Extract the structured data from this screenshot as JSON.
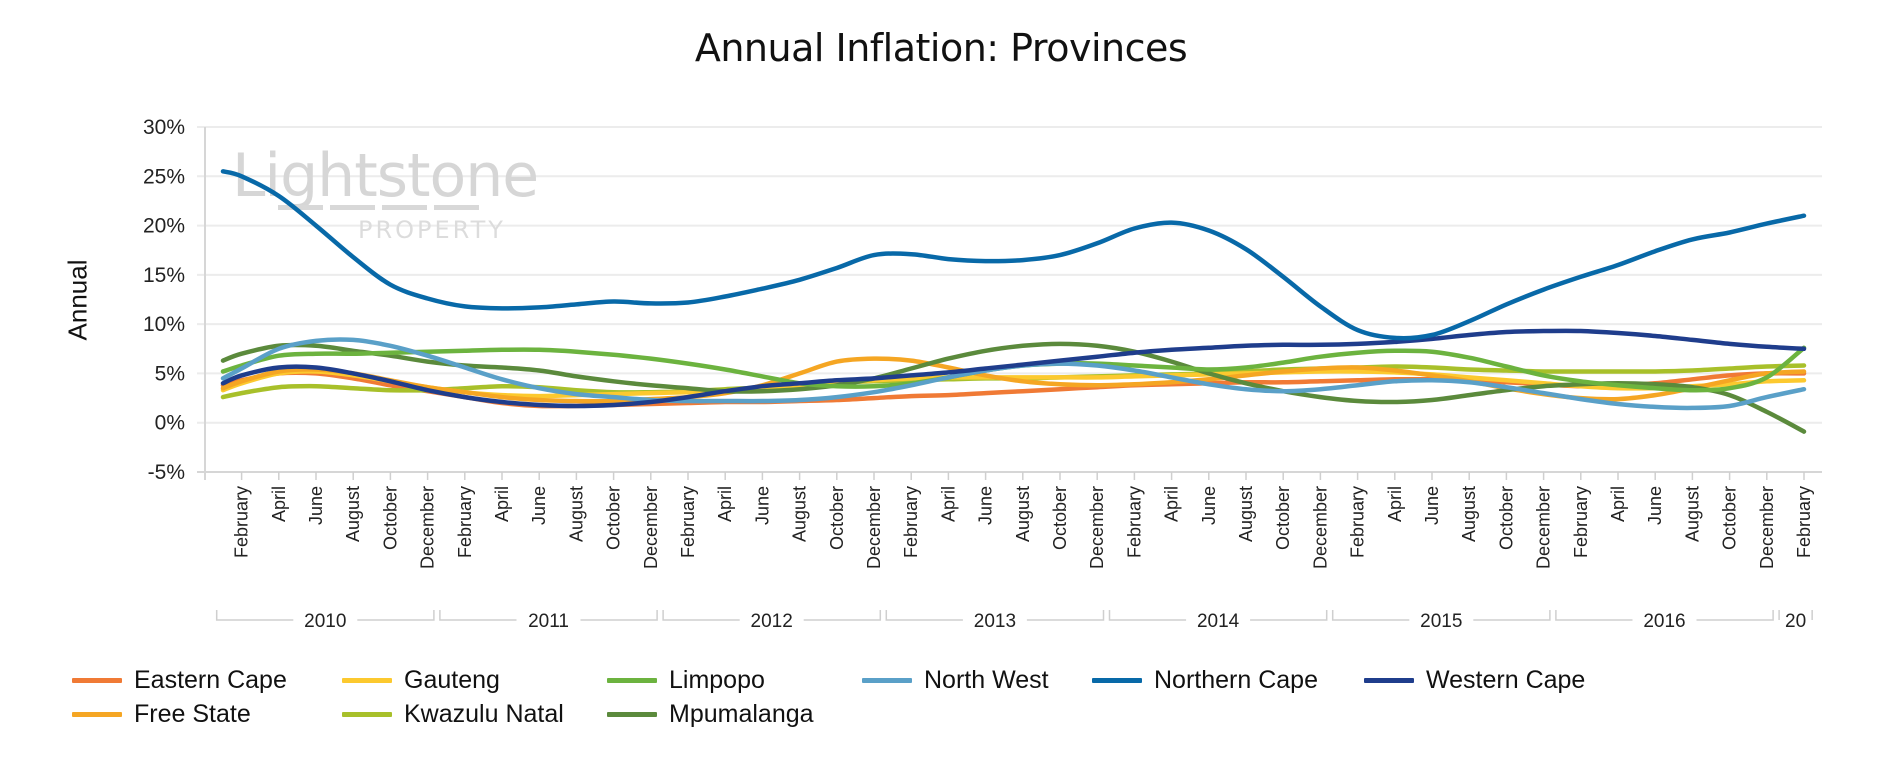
{
  "chart_data": {
    "type": "line",
    "title": "Annual Inflation: Provinces",
    "xlabel": "",
    "ylabel": "Annual",
    "ylim": [
      -5,
      30
    ],
    "yticks": [
      -5,
      0,
      5,
      10,
      15,
      20,
      25,
      30
    ],
    "ytick_labels": [
      "-5%",
      "0%",
      "5%",
      "10%",
      "15%",
      "20%",
      "25%",
      "30%"
    ],
    "grid": true,
    "legend_position": "bottom",
    "watermark": {
      "line1": "Lightstone",
      "line2": "PROPERTY"
    },
    "x_start": "2010-01",
    "x_end": "2017-02",
    "x_tick_labels": [
      "February",
      "April",
      "June",
      "August",
      "October",
      "December",
      "February",
      "April",
      "June",
      "August",
      "October",
      "December",
      "February",
      "April",
      "June",
      "August",
      "October",
      "December",
      "February",
      "April",
      "June",
      "August",
      "October",
      "December",
      "February",
      "April",
      "June",
      "August",
      "October",
      "December",
      "February",
      "April",
      "June",
      "August",
      "October",
      "December",
      "February",
      "April",
      "June",
      "August",
      "October",
      "December",
      "February"
    ],
    "x_groups": [
      {
        "label": "2010"
      },
      {
        "label": "2011"
      },
      {
        "label": "2012"
      },
      {
        "label": "2013"
      },
      {
        "label": "2014"
      },
      {
        "label": "2015"
      },
      {
        "label": "2016"
      },
      {
        "label": "20"
      }
    ],
    "x_sample_note": "Values sampled at Jan 2010 then every second month (Feb, Apr, Jun, Aug, Oct, Dec) through Feb 2017",
    "x": [
      "2010-01",
      "2010-02",
      "2010-04",
      "2010-06",
      "2010-08",
      "2010-10",
      "2010-12",
      "2011-02",
      "2011-04",
      "2011-06",
      "2011-08",
      "2011-10",
      "2011-12",
      "2012-02",
      "2012-04",
      "2012-06",
      "2012-08",
      "2012-10",
      "2012-12",
      "2013-02",
      "2013-04",
      "2013-06",
      "2013-08",
      "2013-10",
      "2013-12",
      "2014-02",
      "2014-04",
      "2014-06",
      "2014-08",
      "2014-10",
      "2014-12",
      "2015-02",
      "2015-04",
      "2015-06",
      "2015-08",
      "2015-10",
      "2015-12",
      "2016-02",
      "2016-04",
      "2016-06",
      "2016-08",
      "2016-10",
      "2016-12",
      "2017-02"
    ],
    "series": [
      {
        "name": "Eastern Cape",
        "color": "#f07a35",
        "values": [
          3.8,
          4.3,
          5.0,
          5.0,
          4.5,
          3.8,
          3.2,
          2.6,
          2.0,
          1.7,
          1.7,
          1.8,
          1.9,
          2.0,
          2.1,
          2.1,
          2.2,
          2.3,
          2.5,
          2.7,
          2.8,
          3.0,
          3.2,
          3.4,
          3.6,
          3.8,
          3.9,
          4.0,
          4.1,
          4.1,
          4.2,
          4.3,
          4.4,
          4.4,
          4.3,
          4.1,
          3.9,
          3.7,
          3.8,
          4.0,
          4.4,
          4.8,
          5.0,
          5.0
        ]
      },
      {
        "name": "Free State",
        "color": "#f5a623",
        "values": [
          3.5,
          4.2,
          5.2,
          5.4,
          5.0,
          4.3,
          3.6,
          3.1,
          2.6,
          2.3,
          2.2,
          2.2,
          2.4,
          2.6,
          3.0,
          3.8,
          5.0,
          6.2,
          6.5,
          6.3,
          5.6,
          4.8,
          4.2,
          3.9,
          3.8,
          3.9,
          4.1,
          4.4,
          4.8,
          5.2,
          5.5,
          5.6,
          5.3,
          4.8,
          4.2,
          3.5,
          2.9,
          2.5,
          2.4,
          2.8,
          3.5,
          4.3,
          5.0,
          5.2
        ]
      },
      {
        "name": "Gauteng",
        "color": "#fcc92f",
        "values": [
          3.3,
          4.0,
          5.0,
          5.2,
          4.8,
          4.2,
          3.6,
          3.1,
          2.8,
          2.7,
          2.8,
          2.9,
          3.0,
          3.1,
          3.2,
          3.4,
          3.7,
          4.0,
          4.3,
          4.5,
          4.6,
          4.6,
          4.6,
          4.6,
          4.6,
          4.7,
          4.8,
          4.9,
          5.0,
          5.1,
          5.2,
          5.2,
          5.1,
          4.9,
          4.6,
          4.3,
          4.0,
          3.7,
          3.5,
          3.5,
          3.7,
          3.9,
          4.2,
          4.3
        ]
      },
      {
        "name": "Kwazulu Natal",
        "color": "#a8c02a",
        "values": [
          2.6,
          3.0,
          3.6,
          3.7,
          3.5,
          3.3,
          3.3,
          3.5,
          3.7,
          3.6,
          3.3,
          3.1,
          3.1,
          3.2,
          3.4,
          3.6,
          3.9,
          4.1,
          4.2,
          4.3,
          4.4,
          4.5,
          4.5,
          4.6,
          4.7,
          4.8,
          4.9,
          5.0,
          5.2,
          5.4,
          5.5,
          5.6,
          5.7,
          5.6,
          5.4,
          5.3,
          5.2,
          5.2,
          5.2,
          5.2,
          5.3,
          5.5,
          5.7,
          5.8
        ]
      },
      {
        "name": "Limpopo",
        "color": "#6cb33f",
        "values": [
          5.2,
          5.8,
          6.8,
          7.0,
          7.0,
          7.1,
          7.2,
          7.3,
          7.4,
          7.4,
          7.2,
          6.9,
          6.5,
          6.0,
          5.4,
          4.7,
          4.0,
          3.7,
          3.7,
          4.0,
          4.6,
          5.3,
          5.8,
          6.0,
          6.0,
          5.8,
          5.6,
          5.4,
          5.6,
          6.1,
          6.7,
          7.1,
          7.3,
          7.2,
          6.6,
          5.7,
          4.8,
          4.2,
          3.8,
          3.5,
          3.3,
          3.5,
          4.6,
          7.6
        ]
      },
      {
        "name": "Mpumalanga",
        "color": "#5b8a3c",
        "values": [
          6.3,
          7.0,
          7.8,
          7.8,
          7.3,
          6.8,
          6.2,
          5.8,
          5.6,
          5.3,
          4.7,
          4.2,
          3.8,
          3.5,
          3.2,
          3.2,
          3.4,
          3.8,
          4.5,
          5.5,
          6.5,
          7.3,
          7.8,
          8.0,
          7.8,
          7.2,
          6.2,
          5.0,
          4.0,
          3.2,
          2.6,
          2.2,
          2.1,
          2.3,
          2.8,
          3.3,
          3.7,
          3.9,
          4.0,
          3.9,
          3.6,
          2.8,
          1.1,
          -0.9
        ]
      },
      {
        "name": "North West",
        "color": "#5aa0c8",
        "values": [
          4.5,
          5.5,
          7.5,
          8.3,
          8.4,
          7.8,
          6.8,
          5.6,
          4.4,
          3.5,
          2.9,
          2.6,
          2.3,
          2.2,
          2.2,
          2.2,
          2.3,
          2.6,
          3.1,
          3.8,
          4.6,
          5.3,
          5.8,
          6.0,
          5.8,
          5.3,
          4.6,
          3.9,
          3.4,
          3.2,
          3.4,
          3.8,
          4.2,
          4.3,
          4.1,
          3.6,
          3.0,
          2.4,
          1.9,
          1.6,
          1.5,
          1.7,
          2.6,
          3.4
        ]
      },
      {
        "name": "Northern Cape",
        "color": "#0869a8",
        "values": [
          25.5,
          25.0,
          23.0,
          20.0,
          16.8,
          14.0,
          12.6,
          11.8,
          11.6,
          11.7,
          12.0,
          12.3,
          12.1,
          12.2,
          12.8,
          13.6,
          14.5,
          15.7,
          17.0,
          17.1,
          16.6,
          16.4,
          16.5,
          17.0,
          18.2,
          19.7,
          20.3,
          19.5,
          17.6,
          14.8,
          11.8,
          9.4,
          8.6,
          8.9,
          10.3,
          12.0,
          13.5,
          14.8,
          16.0,
          17.4,
          18.6,
          19.3,
          20.2,
          21.0
        ]
      },
      {
        "name": "Western Cape",
        "color": "#1f3d8c",
        "values": [
          4.0,
          4.8,
          5.6,
          5.6,
          5.0,
          4.2,
          3.3,
          2.6,
          2.1,
          1.8,
          1.7,
          1.8,
          2.1,
          2.6,
          3.2,
          3.7,
          4.0,
          4.3,
          4.5,
          4.8,
          5.1,
          5.5,
          5.9,
          6.3,
          6.7,
          7.1,
          7.4,
          7.6,
          7.8,
          7.9,
          7.9,
          8.0,
          8.2,
          8.5,
          8.9,
          9.2,
          9.3,
          9.3,
          9.1,
          8.8,
          8.4,
          8.0,
          7.7,
          7.5
        ]
      }
    ]
  },
  "legend": {
    "row1": [
      "Eastern Cape",
      "Gauteng",
      "Limpopo",
      "North West",
      "Northern Cape",
      "Western Cape"
    ],
    "row2": [
      "Free State",
      "Kwazulu Natal",
      "Mpumalanga"
    ]
  }
}
